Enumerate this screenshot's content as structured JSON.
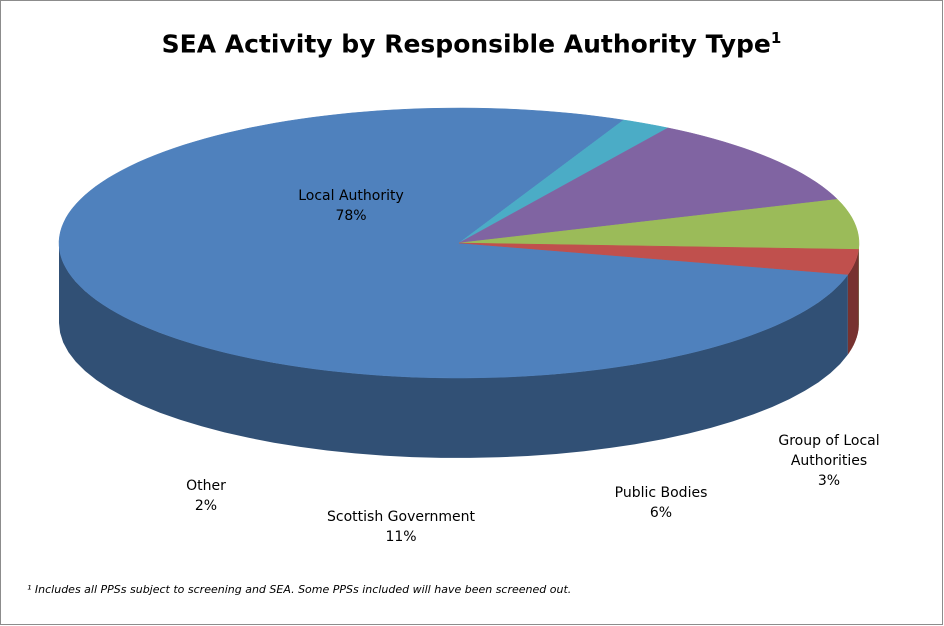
{
  "chart_data": {
    "type": "pie",
    "title": "SEA Activity by Responsible Authority Type",
    "title_superscript": "1",
    "categories": [
      "Local Authority",
      "Group of Local Authorities",
      "Public Bodies",
      "Scottish Government",
      "Other"
    ],
    "values": [
      78,
      3,
      6,
      11,
      2
    ],
    "value_labels": [
      "78%",
      "3%",
      "6%",
      "11%",
      "2%"
    ],
    "colors": [
      "#4F81BD",
      "#C0504D",
      "#9BBB59",
      "#8064A2",
      "#4BACC6"
    ],
    "style": "3d-exploded-none",
    "footnote": "¹ Includes all PPSs subject to screening and SEA.  Some PPSs included will have been screened out."
  }
}
